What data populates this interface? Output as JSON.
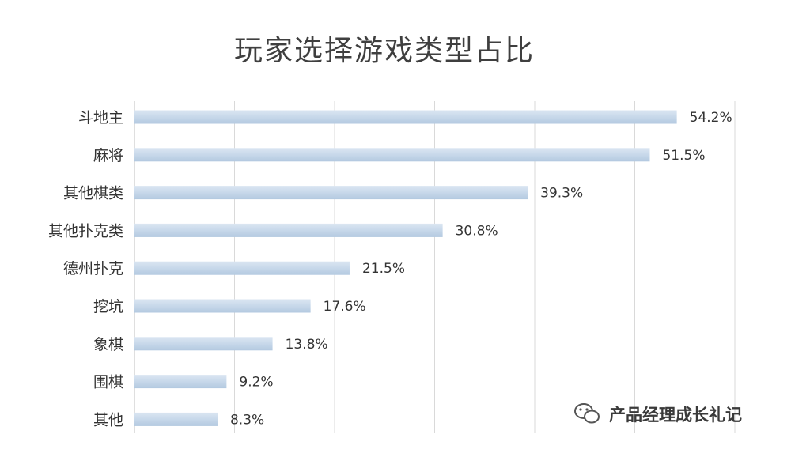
{
  "chart_data": {
    "type": "bar",
    "orientation": "horizontal",
    "title": "玩家选择游戏类型占比",
    "categories": [
      "斗地主",
      "麻将",
      "其他棋类",
      "其他扑克类",
      "德州扑克",
      "挖坑",
      "象棋",
      "围棋",
      "其他"
    ],
    "values": [
      54.2,
      51.5,
      39.3,
      30.8,
      21.5,
      17.6,
      13.8,
      9.2,
      8.3
    ],
    "value_labels": [
      "54.2%",
      "51.5%",
      "39.3%",
      "30.8%",
      "21.5%",
      "17.6%",
      "13.8%",
      "9.2%",
      "8.3%"
    ],
    "xlim": [
      0,
      60
    ],
    "grid": true,
    "legend": "none",
    "bar_color": "#bcd1e6",
    "bar_highlight": "#dbe6f2"
  },
  "watermark": {
    "text": "产品经理成长礼记",
    "icon": "wechat-icon"
  }
}
